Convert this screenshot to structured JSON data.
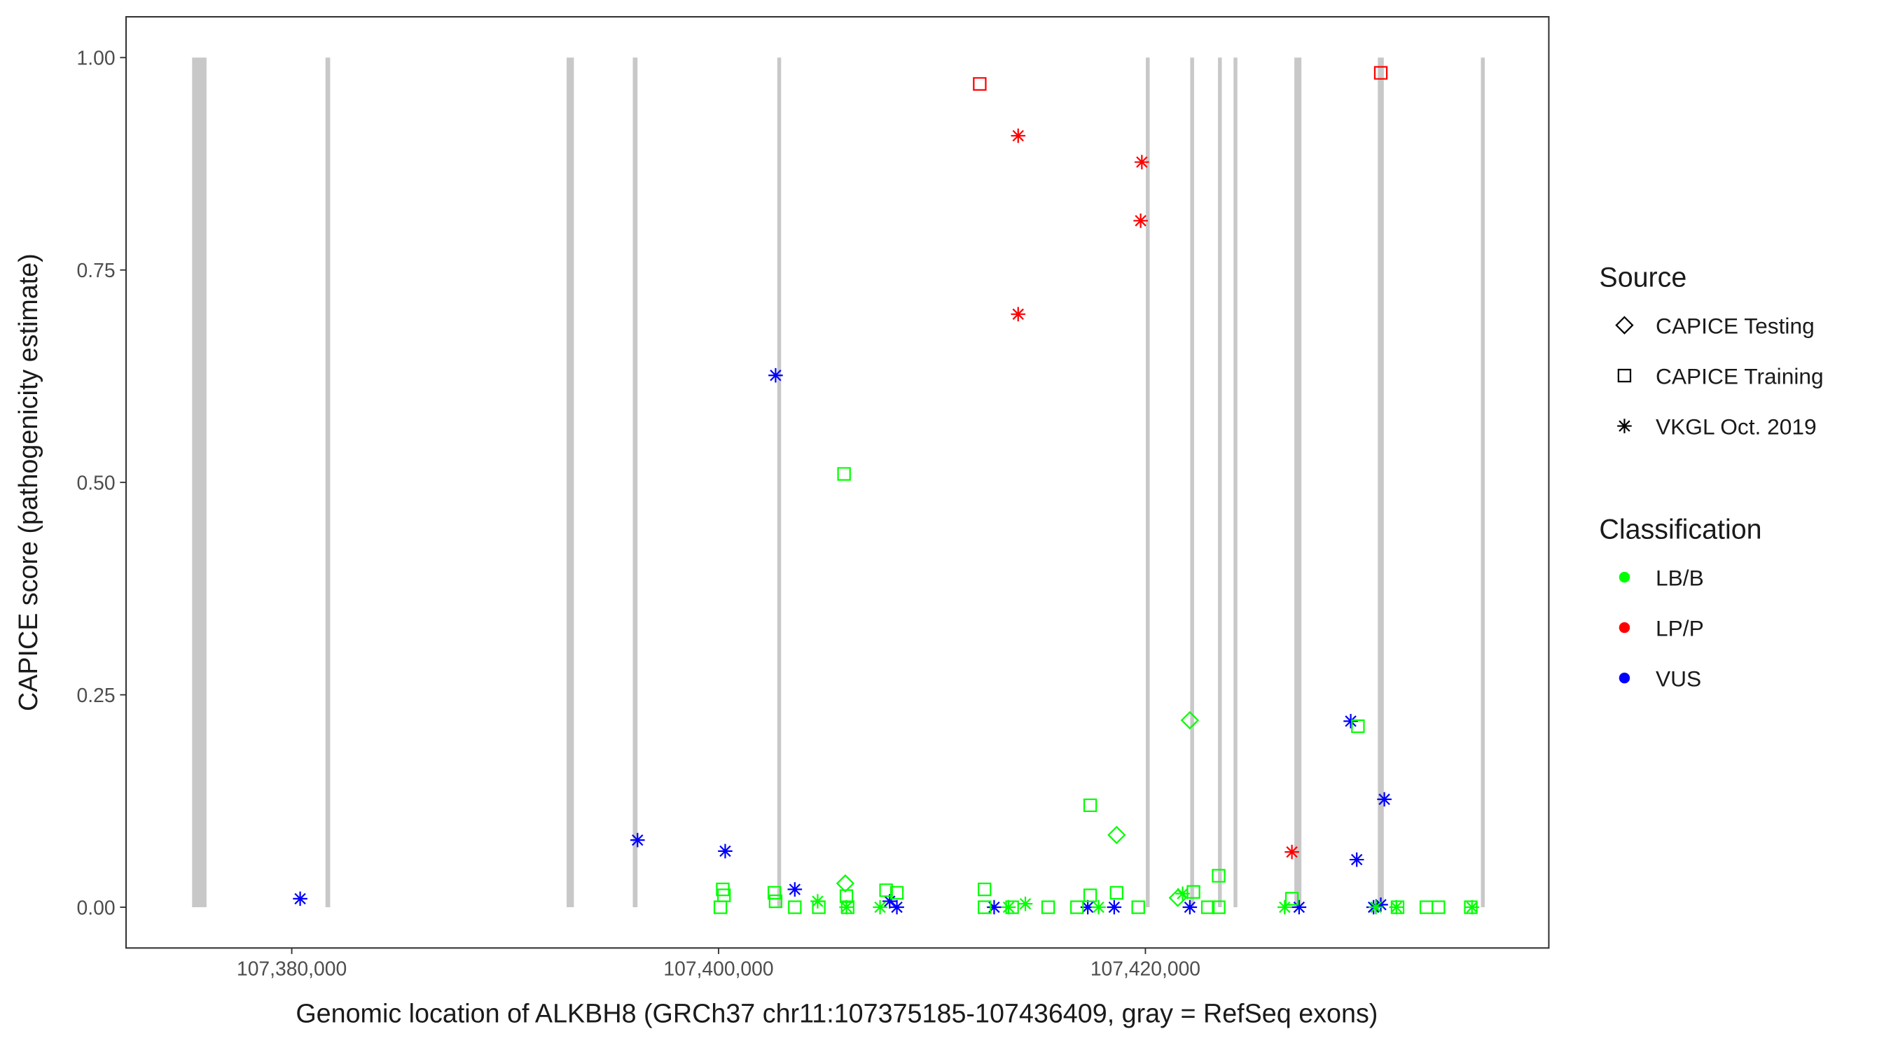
{
  "chart_data": {
    "type": "scatter",
    "x_label": "Genomic location of ALKBH8 (GRCh37 chr11:107375185-107436409, gray = RefSeq exons)",
    "y_label": "CAPICE score (pathogenicity estimate)",
    "xlim": [
      107372236,
      107438903
    ],
    "ylim": [
      -0.048,
      1.048
    ],
    "xticks": [
      {
        "value": 107380000,
        "label": "107,380,000"
      },
      {
        "value": 107400000,
        "label": "107,400,000"
      },
      {
        "value": 107420000,
        "label": "107,420,000"
      }
    ],
    "yticks": [
      {
        "value": 0,
        "label": "0.00"
      },
      {
        "value": 0.25,
        "label": "0.25"
      },
      {
        "value": 0.5,
        "label": "0.50"
      },
      {
        "value": 0.75,
        "label": "0.75"
      },
      {
        "value": 1,
        "label": "1.00"
      }
    ],
    "exon_color": "#c8c8c8",
    "exons": [
      [
        107375330,
        107376006
      ],
      [
        107381580,
        107381800
      ],
      [
        107392880,
        107393220
      ],
      [
        107395980,
        107396200
      ],
      [
        107402750,
        107402930
      ],
      [
        107420020,
        107420200
      ],
      [
        107422100,
        107422280
      ],
      [
        107423400,
        107423580
      ],
      [
        107424130,
        107424310
      ],
      [
        107426980,
        107427310
      ],
      [
        107430890,
        107431170
      ],
      [
        107435720,
        107435900
      ]
    ],
    "legend": {
      "source": {
        "title": "Source",
        "entries": [
          {
            "name": "CAPICE Testing",
            "shape": "diamond"
          },
          {
            "name": "CAPICE Training",
            "shape": "square"
          },
          {
            "name": "VKGL Oct. 2019",
            "shape": "star"
          }
        ]
      },
      "classification": {
        "title": "Classification",
        "entries": [
          {
            "name": "LB/B",
            "color": "#00ff00"
          },
          {
            "name": "LP/P",
            "color": "#ff0000"
          },
          {
            "name": "VUS",
            "color": "#0000ff"
          }
        ]
      }
    },
    "series": [
      {
        "shape": "square",
        "color": "#ff0000",
        "x": [
          107412237,
          107431030
        ],
        "y": [
          0.969,
          0.982
        ]
      },
      {
        "shape": "star",
        "color": "#ff0000",
        "x": [
          107414038,
          107414038,
          107419833,
          107419777,
          107426865
        ],
        "y": [
          0.908,
          0.698,
          0.877,
          0.808,
          0.065
        ]
      },
      {
        "shape": "star",
        "color": "#0000ff",
        "x": [
          107380394,
          107396203,
          107400310,
          107402672,
          107403572,
          107408017,
          107408355,
          107412912,
          107417300,
          107418538,
          107422082,
          107427202,
          107429621,
          107429903,
          107431197,
          107430690,
          107431030
        ],
        "y": [
          0.01,
          0.079,
          0.066,
          0.626,
          0.021,
          0.007,
          0,
          0,
          0,
          0,
          0,
          0,
          0.219,
          0.056,
          0.127,
          0,
          0.003
        ]
      },
      {
        "shape": "square",
        "color": "#00ff00",
        "x": [
          107405880,
          107417413,
          107429959,
          107400085,
          107400197,
          107400253,
          107402616,
          107402672,
          107403572,
          107404698,
          107405992,
          107406048,
          107407849,
          107408355,
          107412462,
          107412462,
          107413756,
          107415444,
          107416794,
          107417413,
          107418650,
          107419664,
          107422252,
          107422926,
          107423433,
          107423433,
          107426865,
          107431816,
          107433166,
          107433729,
          107435248
        ],
        "y": [
          0.51,
          0.12,
          0.213,
          0,
          0.021,
          0.014,
          0.017,
          0.007,
          0,
          0,
          0.013,
          0,
          0.02,
          0.017,
          0.021,
          0,
          0,
          0,
          0,
          0.014,
          0.017,
          0,
          0.018,
          0,
          0.037,
          0,
          0.01,
          0,
          0,
          0,
          0
        ]
      },
      {
        "shape": "diamond",
        "color": "#00ff00",
        "x": [
          107422082,
          107418650,
          107405936,
          107421519
        ],
        "y": [
          0.22,
          0.085,
          0.028,
          0.011
        ]
      },
      {
        "shape": "star",
        "color": "#00ff00",
        "x": [
          107404642,
          107405992,
          107407567,
          107414375,
          107413587,
          107417807,
          107421744,
          107426527,
          107430800,
          107435304,
          107431760
        ],
        "y": [
          0.007,
          0,
          0,
          0.004,
          0,
          0,
          0.016,
          0,
          0,
          0,
          0
        ]
      }
    ]
  }
}
